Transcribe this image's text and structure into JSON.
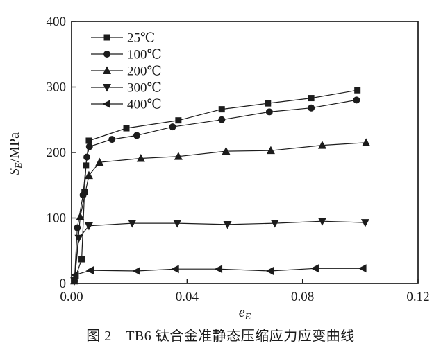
{
  "figure": {
    "caption": "图 2　TB6 钛合金准静态压缩应力应变曲线"
  },
  "chart_data": {
    "type": "line",
    "title": "",
    "xlabel": "e_E",
    "xlabel_main": "e",
    "xlabel_sub": "E",
    "ylabel": "S_E/MPa",
    "ylabel_main": "S",
    "ylabel_sub": "E",
    "ylabel_rest": "/MPa",
    "xlim": [
      0,
      0.12
    ],
    "ylim": [
      0,
      400
    ],
    "x_ticks": [
      0,
      0.04,
      0.08,
      0.12
    ],
    "x_tick_labels": [
      "0.00",
      "0.04",
      "0.08",
      "0.12"
    ],
    "y_ticks": [
      0,
      100,
      200,
      300,
      400
    ],
    "y_tick_labels": [
      "0",
      "100",
      "200",
      "300",
      "400"
    ],
    "grid": false,
    "legend_position": "top-left-inside",
    "line_color": "#1c1c1c",
    "series": [
      {
        "name": "25℃",
        "marker": "square",
        "points": [
          [
            0.001,
            5
          ],
          [
            0.0035,
            37
          ],
          [
            0.0045,
            140
          ],
          [
            0.005,
            180
          ],
          [
            0.006,
            218
          ],
          [
            0.019,
            237
          ],
          [
            0.037,
            249
          ],
          [
            0.052,
            266
          ],
          [
            0.068,
            275
          ],
          [
            0.083,
            283
          ],
          [
            0.099,
            295
          ]
        ]
      },
      {
        "name": "100℃",
        "marker": "circle",
        "points": [
          [
            0.001,
            4
          ],
          [
            0.002,
            85
          ],
          [
            0.004,
            135
          ],
          [
            0.0053,
            193
          ],
          [
            0.0062,
            209
          ],
          [
            0.014,
            220
          ],
          [
            0.0226,
            226
          ],
          [
            0.035,
            239
          ],
          [
            0.052,
            250
          ],
          [
            0.0685,
            262
          ],
          [
            0.083,
            268
          ],
          [
            0.0987,
            280
          ]
        ]
      },
      {
        "name": "200℃",
        "marker": "triangle-up",
        "points": [
          [
            0.001,
            4
          ],
          [
            0.003,
            102
          ],
          [
            0.006,
            165
          ],
          [
            0.0097,
            185
          ],
          [
            0.024,
            191
          ],
          [
            0.037,
            194
          ],
          [
            0.0535,
            202
          ],
          [
            0.069,
            203
          ],
          [
            0.0868,
            211
          ],
          [
            0.102,
            215
          ]
        ]
      },
      {
        "name": "300℃",
        "marker": "triangle-down",
        "points": [
          [
            0.001,
            4
          ],
          [
            0.0025,
            69
          ],
          [
            0.006,
            88
          ],
          [
            0.021,
            92
          ],
          [
            0.0366,
            92
          ],
          [
            0.054,
            90
          ],
          [
            0.0704,
            92
          ],
          [
            0.0868,
            95
          ],
          [
            0.1017,
            93
          ]
        ]
      },
      {
        "name": "400℃",
        "marker": "triangle-left",
        "points": [
          [
            0.0013,
            13
          ],
          [
            0.0065,
            20
          ],
          [
            0.0226,
            19
          ],
          [
            0.036,
            22
          ],
          [
            0.051,
            22
          ],
          [
            0.0688,
            19
          ],
          [
            0.0844,
            23
          ],
          [
            0.1009,
            23
          ]
        ]
      }
    ]
  }
}
